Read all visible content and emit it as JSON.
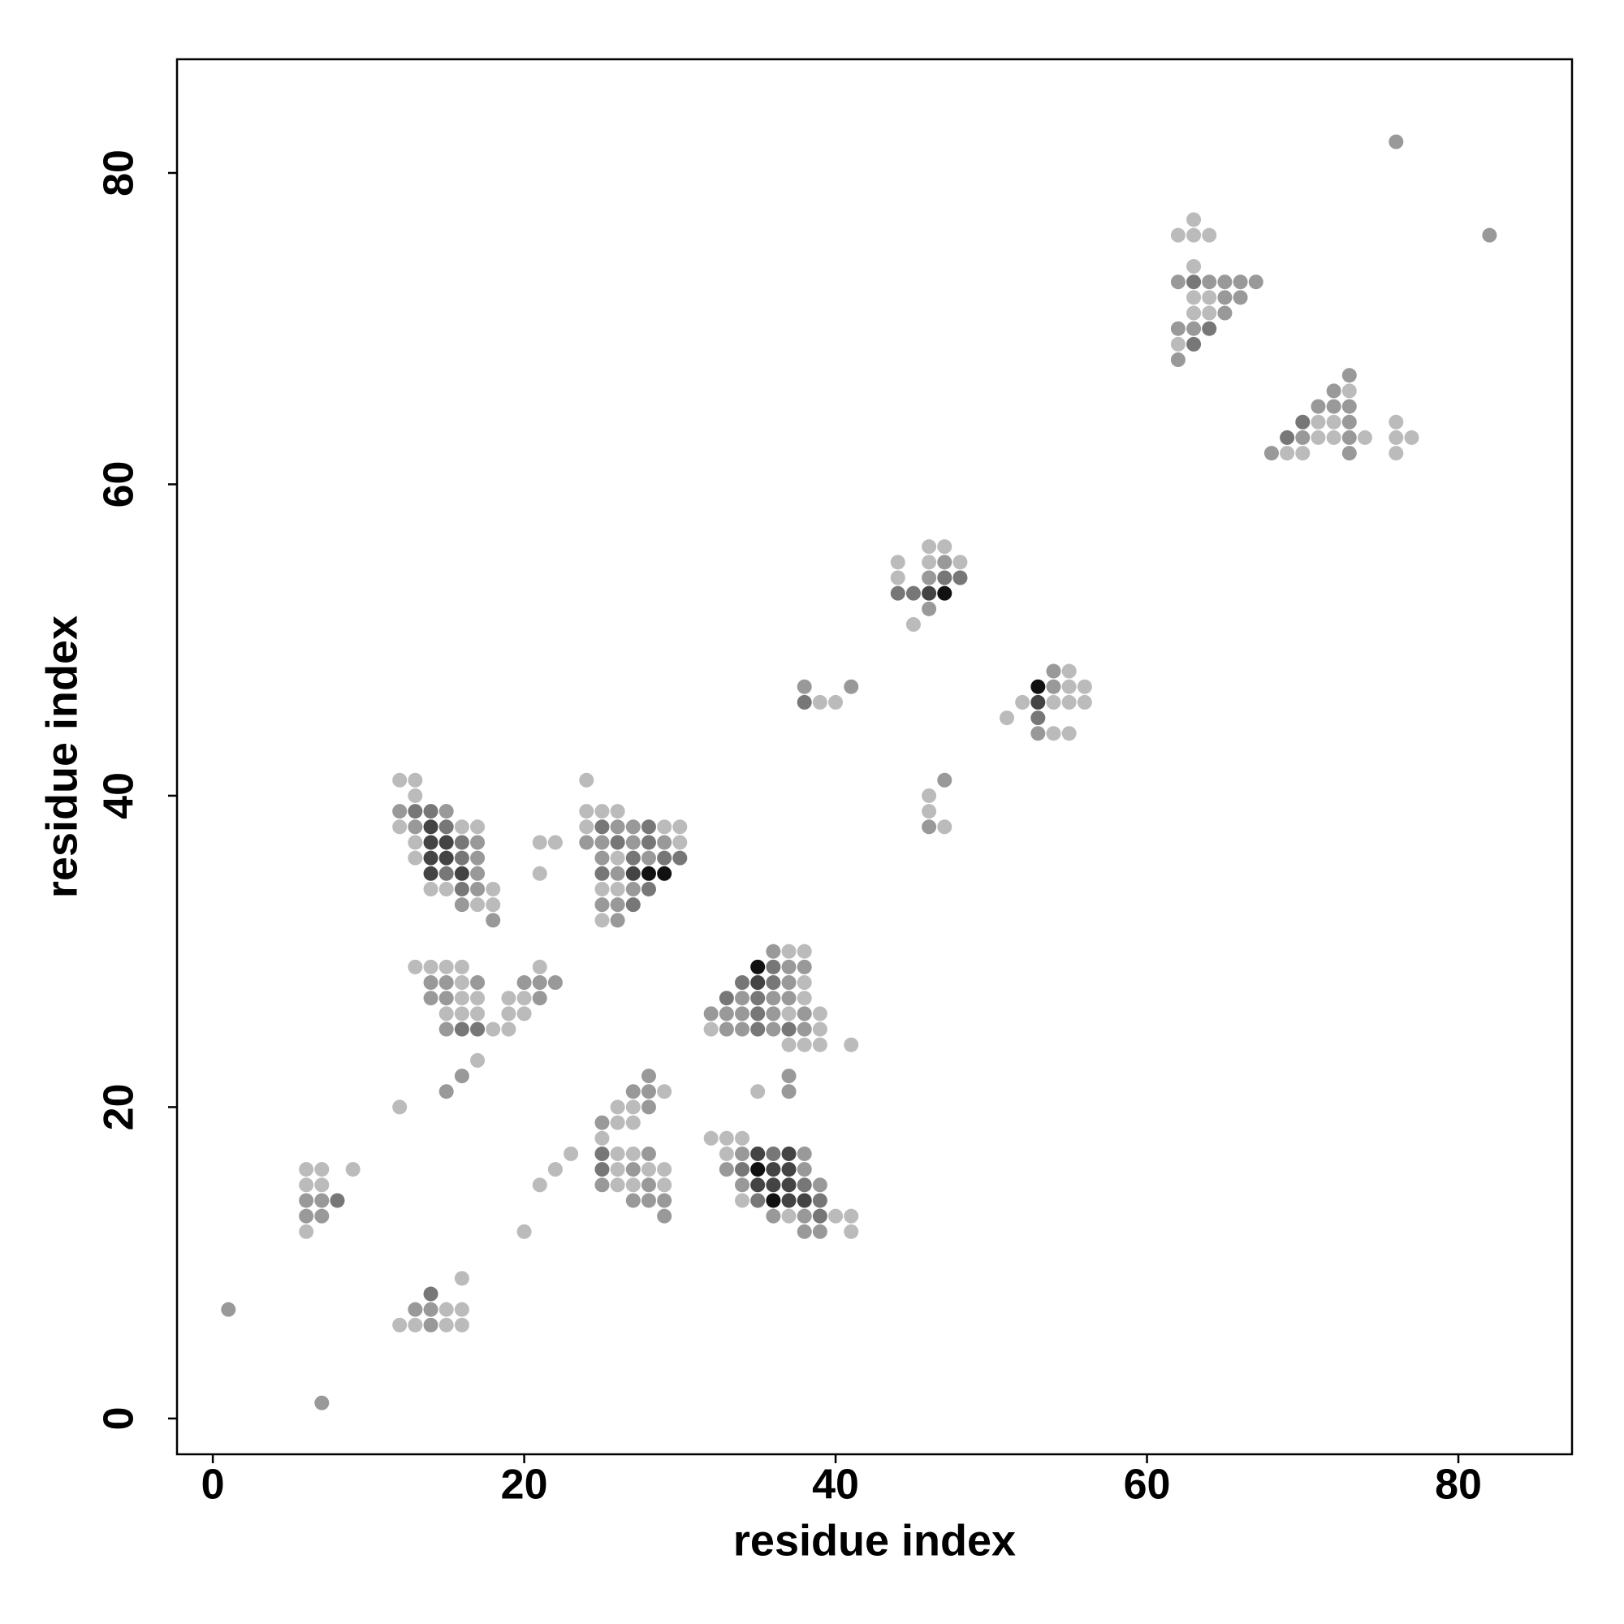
{
  "chart_data": {
    "type": "scatter",
    "xlabel": "residue index",
    "ylabel": "residue index",
    "xlim": [
      -2.3,
      87.3
    ],
    "ylim": [
      -2.3,
      87.3
    ],
    "xticks": [
      0,
      20,
      40,
      60,
      80
    ],
    "yticks": [
      0,
      20,
      40,
      60,
      80
    ],
    "grid": false,
    "series": [
      {
        "color": "#bbbbbb",
        "x": [
          6,
          7,
          9,
          6,
          7,
          6,
          16,
          15,
          16,
          12,
          13,
          15,
          16,
          12,
          17,
          13,
          14,
          15,
          16,
          16,
          16,
          17,
          15,
          16,
          17,
          18,
          19,
          19,
          20,
          21,
          19,
          20,
          12,
          13,
          13,
          12,
          16,
          17,
          13,
          13,
          14,
          15,
          18,
          17,
          18,
          21,
          22,
          21,
          24,
          24,
          25,
          26,
          24,
          29,
          30,
          30,
          26,
          25,
          26,
          25,
          29,
          26,
          27,
          26,
          27,
          25,
          23,
          22,
          21,
          20,
          26,
          27,
          26,
          28,
          29,
          26,
          27,
          29,
          32,
          33,
          34,
          33,
          34,
          37,
          40,
          41,
          41,
          35,
          37,
          38,
          38,
          38,
          37,
          39,
          32,
          39,
          37,
          38,
          39,
          41,
          39,
          40,
          46,
          46,
          47,
          46,
          47,
          44,
          46,
          48,
          44,
          45,
          55,
          55,
          56,
          52,
          54,
          55,
          56,
          51,
          54,
          55,
          63,
          62,
          63,
          64,
          63,
          63,
          64,
          63,
          64,
          62,
          73,
          71,
          72,
          76,
          71,
          72,
          74,
          76,
          77,
          69,
          70,
          76
        ],
        "values": [
          16,
          16,
          16,
          15,
          15,
          12,
          9,
          7,
          7,
          6,
          6,
          6,
          6,
          20,
          23,
          29,
          29,
          29,
          29,
          28,
          27,
          27,
          26,
          26,
          26,
          25,
          25,
          27,
          27,
          29,
          26,
          26,
          41,
          41,
          40,
          38,
          38,
          38,
          37,
          36,
          34,
          34,
          34,
          33,
          33,
          37,
          37,
          35,
          41,
          39,
          39,
          39,
          38,
          38,
          38,
          37,
          36,
          34,
          34,
          32,
          21,
          20,
          20,
          19,
          19,
          18,
          17,
          16,
          15,
          12,
          17,
          17,
          16,
          16,
          16,
          15,
          15,
          15,
          18,
          18,
          18,
          17,
          14,
          13,
          13,
          13,
          12,
          21,
          30,
          30,
          28,
          27,
          26,
          26,
          25,
          25,
          24,
          24,
          24,
          24,
          46,
          46,
          40,
          39,
          38,
          56,
          56,
          55,
          55,
          55,
          54,
          51,
          48,
          47,
          47,
          46,
          46,
          46,
          46,
          45,
          44,
          44,
          77,
          76,
          76,
          76,
          74,
          72,
          72,
          71,
          71,
          69,
          66,
          64,
          64,
          64,
          63,
          63,
          63,
          63,
          63,
          62,
          62,
          62
        ]
      },
      {
        "color": "#999999",
        "x": [
          1,
          7,
          6,
          7,
          6,
          7,
          13,
          14,
          14,
          15,
          16,
          14,
          15,
          17,
          14,
          15,
          15,
          21,
          20,
          21,
          22,
          12,
          15,
          13,
          17,
          17,
          17,
          17,
          16,
          18,
          26,
          27,
          24,
          25,
          27,
          29,
          25,
          28,
          26,
          27,
          25,
          26,
          26,
          28,
          27,
          28,
          28,
          25,
          28,
          27,
          25,
          28,
          27,
          28,
          29,
          29,
          34,
          38,
          33,
          38,
          34,
          39,
          36,
          38,
          38,
          39,
          37,
          37,
          36,
          37,
          38,
          37,
          34,
          36,
          37,
          32,
          33,
          34,
          36,
          38,
          33,
          34,
          36,
          38,
          38,
          41,
          47,
          46,
          47,
          46,
          46,
          54,
          54,
          53,
          62,
          64,
          65,
          66,
          67,
          65,
          66,
          65,
          62,
          63,
          62,
          73,
          72,
          71,
          72,
          73,
          73,
          70,
          73,
          68,
          73,
          76,
          82
        ],
        "values": [
          7,
          1,
          14,
          14,
          13,
          13,
          7,
          7,
          6,
          21,
          22,
          28,
          28,
          28,
          27,
          27,
          25,
          27,
          28,
          28,
          28,
          39,
          39,
          38,
          37,
          36,
          35,
          34,
          33,
          32,
          38,
          38,
          37,
          37,
          37,
          37,
          36,
          36,
          35,
          34,
          33,
          33,
          32,
          22,
          21,
          21,
          20,
          19,
          17,
          16,
          15,
          15,
          14,
          14,
          14,
          13,
          17,
          17,
          16,
          16,
          15,
          15,
          13,
          13,
          12,
          12,
          21,
          22,
          30,
          29,
          29,
          28,
          27,
          27,
          27,
          26,
          26,
          26,
          26,
          26,
          25,
          25,
          25,
          25,
          47,
          47,
          41,
          38,
          55,
          54,
          52,
          48,
          47,
          44,
          73,
          73,
          73,
          73,
          73,
          72,
          72,
          71,
          70,
          70,
          68,
          67,
          66,
          65,
          65,
          65,
          64,
          63,
          63,
          62,
          62,
          82,
          76
        ]
      },
      {
        "color": "#777777",
        "x": [
          8,
          14,
          16,
          17,
          13,
          14,
          15,
          16,
          16,
          15,
          16,
          25,
          28,
          26,
          28,
          27,
          29,
          30,
          25,
          28,
          27,
          25,
          25,
          36,
          34,
          38,
          35,
          39,
          39,
          36,
          34,
          36,
          33,
          35,
          35,
          35,
          37,
          38,
          47,
          48,
          44,
          45,
          53,
          63,
          64,
          63,
          70,
          69
        ],
        "values": [
          14,
          8,
          25,
          25,
          39,
          39,
          38,
          37,
          36,
          35,
          34,
          38,
          38,
          37,
          37,
          36,
          36,
          36,
          35,
          34,
          33,
          17,
          16,
          17,
          16,
          15,
          14,
          14,
          13,
          29,
          28,
          28,
          27,
          27,
          26,
          25,
          25,
          46,
          54,
          54,
          53,
          53,
          45,
          73,
          70,
          69,
          64,
          63
        ]
      },
      {
        "color": "#444444",
        "x": [
          14,
          14,
          15,
          14,
          15,
          14,
          16,
          27,
          35,
          37,
          36,
          37,
          35,
          36,
          37,
          37,
          38,
          35,
          46,
          53
        ],
        "values": [
          38,
          37,
          37,
          36,
          36,
          35,
          35,
          35,
          17,
          17,
          16,
          16,
          15,
          15,
          15,
          14,
          14,
          28,
          53,
          46
        ]
      },
      {
        "color": "#111111",
        "x": [
          28,
          29,
          35,
          36,
          35,
          47,
          53
        ],
        "values": [
          35,
          35,
          16,
          14,
          29,
          53,
          47
        ]
      }
    ]
  }
}
